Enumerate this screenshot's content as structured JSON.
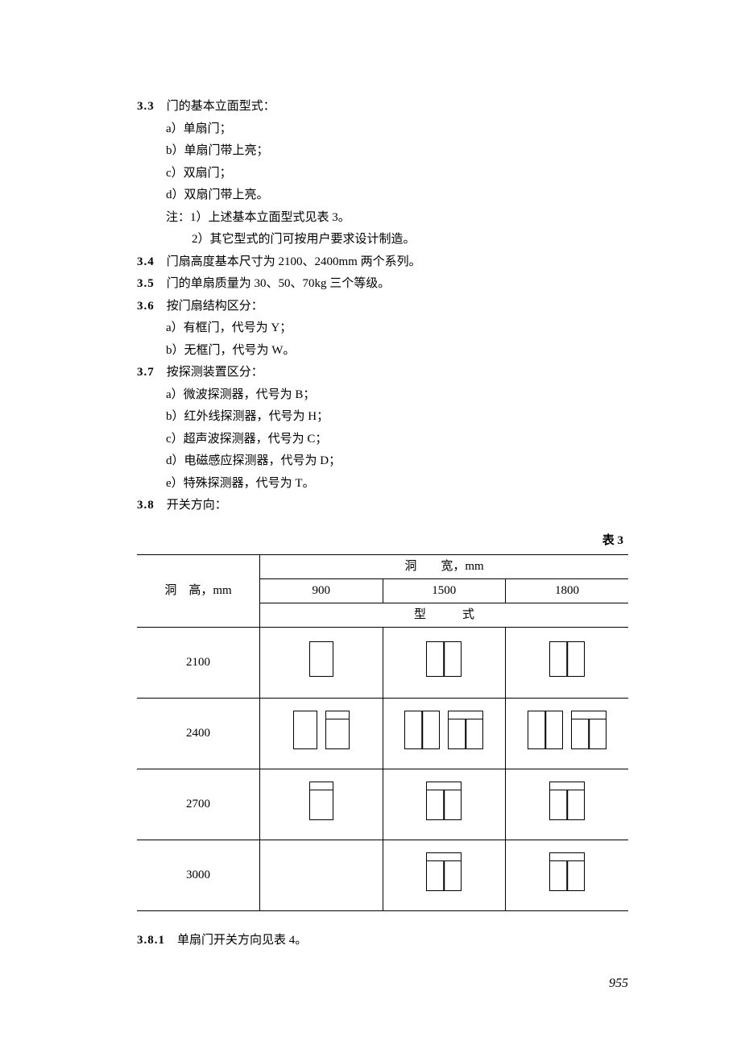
{
  "sections": {
    "s3_3": {
      "num": "3.3",
      "title": "门的基本立面型式：",
      "items": [
        "a）单扇门；",
        "b）单扇门带上亮；",
        "c）双扇门；",
        "d）双扇门带上亮。"
      ],
      "notes_label": "注：",
      "notes": [
        "1）上述基本立面型式见表 3。",
        "2）其它型式的门可按用户要求设计制造。"
      ]
    },
    "s3_4": {
      "num": "3.4",
      "text": "门扇高度基本尺寸为 2100、2400mm 两个系列。"
    },
    "s3_5": {
      "num": "3.5",
      "text": "门的单扇质量为 30、50、70kg 三个等级。"
    },
    "s3_6": {
      "num": "3.6",
      "title": "按门扇结构区分：",
      "items": [
        "a）有框门，代号为 Y；",
        "b）无框门，代号为 W。"
      ]
    },
    "s3_7": {
      "num": "3.7",
      "title": "按探测装置区分：",
      "items": [
        "a）微波探测器，代号为 B；",
        "b）红外线探测器，代号为 H；",
        "c）超声波探测器，代号为 C；",
        "d）电磁感应探测器，代号为 D；",
        "e）特殊探测器，代号为 T。"
      ]
    },
    "s3_8": {
      "num": "3.8",
      "title": "开关方向："
    },
    "s3_8_1": {
      "num": "3.8.1",
      "text": "单扇门开关方向见表 4。"
    }
  },
  "table": {
    "caption": "表 3",
    "row_header_label": "洞　高，mm",
    "col_group_label": "洞　　宽，mm",
    "type_row_label": "型　　　式",
    "col_headers": [
      "900",
      "1500",
      "1800"
    ],
    "row_headers": [
      "2100",
      "2400",
      "2700",
      "3000"
    ],
    "door_style": {
      "stroke": "#000000",
      "base_w_single": 30,
      "base_w_double": 44,
      "h_2100": 44,
      "h_2400": 48,
      "h_2700": 48,
      "h_3000": 48,
      "transom_h": 10
    },
    "cells": [
      [
        [
          {
            "type": "single",
            "transom": false
          }
        ],
        [
          {
            "type": "double",
            "transom": false
          }
        ],
        [
          {
            "type": "double",
            "transom": false
          }
        ]
      ],
      [
        [
          {
            "type": "single",
            "transom": false
          },
          {
            "type": "single",
            "transom": true
          }
        ],
        [
          {
            "type": "double",
            "transom": false
          },
          {
            "type": "double",
            "transom": true
          }
        ],
        [
          {
            "type": "double",
            "transom": false
          },
          {
            "type": "double",
            "transom": true
          }
        ]
      ],
      [
        [
          {
            "type": "single",
            "transom": true
          }
        ],
        [
          {
            "type": "double",
            "transom": true
          }
        ],
        [
          {
            "type": "double",
            "transom": true
          }
        ]
      ],
      [
        [],
        [
          {
            "type": "double",
            "transom": true
          }
        ],
        [
          {
            "type": "double",
            "transom": true
          }
        ]
      ]
    ]
  },
  "page_number": "955"
}
